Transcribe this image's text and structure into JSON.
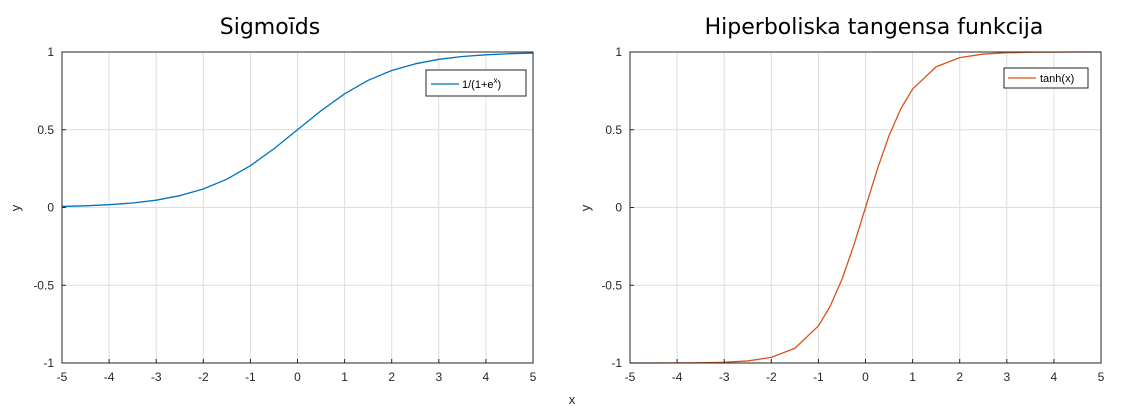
{
  "figure": {
    "shared_xlabel": "x"
  },
  "chart_data": [
    {
      "type": "line",
      "title": "Sigmoīds",
      "xlabel": "",
      "ylabel": "y",
      "xlim": [
        -5,
        5
      ],
      "ylim": [
        -1,
        1
      ],
      "xticks": [
        "-5",
        "-4",
        "-3",
        "-2",
        "-1",
        "0",
        "1",
        "2",
        "3",
        "4",
        "5"
      ],
      "yticks": [
        "-1",
        "-0.5",
        "0",
        "0.5",
        "1"
      ],
      "grid": true,
      "legend_position": "top-right",
      "series": [
        {
          "name": "1/(1+e",
          "name_sup": "x",
          "name_suffix": ")",
          "color": "#0072BD",
          "x": [
            -5,
            -4.5,
            -4,
            -3.5,
            -3,
            -2.5,
            -2,
            -1.5,
            -1,
            -0.5,
            0,
            0.5,
            1,
            1.5,
            2,
            2.5,
            3,
            3.5,
            4,
            4.5,
            5
          ],
          "y": [
            0.0067,
            0.011,
            0.018,
            0.029,
            0.047,
            0.076,
            0.119,
            0.182,
            0.269,
            0.378,
            0.5,
            0.622,
            0.731,
            0.818,
            0.881,
            0.924,
            0.953,
            0.971,
            0.982,
            0.989,
            0.993
          ]
        }
      ]
    },
    {
      "type": "line",
      "title": "Hiperboliska tangensa funkcija",
      "xlabel": "",
      "ylabel": "y",
      "xlim": [
        -5,
        5
      ],
      "ylim": [
        -1,
        1
      ],
      "xticks": [
        "-5",
        "-4",
        "-3",
        "-2",
        "-1",
        "0",
        "1",
        "2",
        "3",
        "4",
        "5"
      ],
      "yticks": [
        "-1",
        "-0.5",
        "0",
        "0.5",
        "1"
      ],
      "grid": true,
      "legend_position": "top-right",
      "series": [
        {
          "name": "tanh(x)",
          "color": "#D95319",
          "x": [
            -5,
            -4.5,
            -4,
            -3.5,
            -3,
            -2.5,
            -2,
            -1.5,
            -1,
            -0.75,
            -0.5,
            -0.25,
            0,
            0.25,
            0.5,
            0.75,
            1,
            1.5,
            2,
            2.5,
            3,
            3.5,
            4,
            4.5,
            5
          ],
          "y": [
            -0.9999,
            -0.9998,
            -0.9993,
            -0.9982,
            -0.9951,
            -0.9866,
            -0.964,
            -0.9051,
            -0.7616,
            -0.6351,
            -0.4621,
            -0.2449,
            0,
            0.2449,
            0.4621,
            0.6351,
            0.7616,
            0.9051,
            0.964,
            0.9866,
            0.9951,
            0.9982,
            0.9993,
            0.9998,
            0.9999
          ]
        }
      ]
    }
  ]
}
